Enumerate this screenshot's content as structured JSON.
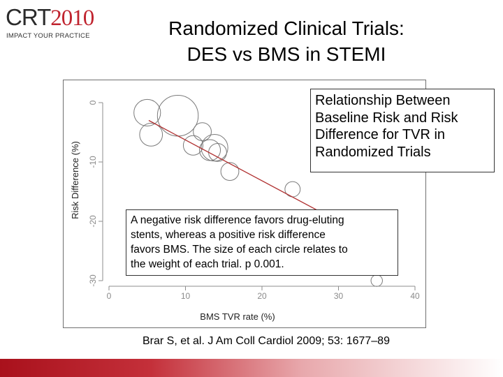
{
  "logo": {
    "text_main": "CRT",
    "text_year": "2010",
    "tagline": "IMPACT YOUR PRACTICE"
  },
  "title": {
    "line1": "Randomized Clinical Trials:",
    "line2": "DES vs BMS in STEMI"
  },
  "callout_top": {
    "lines": [
      "Relationship Between",
      "Baseline Risk and Risk",
      "Difference for TVR in",
      "Randomized Trials"
    ]
  },
  "callout_mid": {
    "lines": [
      "A negative risk difference favors drug-eluting",
      "stents, whereas a positive risk difference",
      "favors BMS. The size of each circle relates to",
      "the weight of each trial. p  0.001."
    ]
  },
  "citation": "Brar S, et al. J Am Coll Cardiol 2009; 53: 1677–89",
  "colors": {
    "accent": "#c0242f",
    "trend_line": "#b03030",
    "marker": "#7a7a7a"
  },
  "chart_data": {
    "type": "scatter",
    "title": "",
    "xlabel": "BMS TVR rate (%)",
    "ylabel": "Risk Difference (%)",
    "xlim": [
      0,
      40
    ],
    "ylim": [
      -30,
      0
    ],
    "x_ticks": [
      "0",
      "10",
      "20",
      "30",
      "40"
    ],
    "y_ticks": [
      "0",
      "-10",
      "-20",
      "-30"
    ],
    "y_tick_values": [
      0,
      -10,
      -20,
      -30
    ],
    "x_tick_values": [
      0,
      10,
      20,
      30,
      40
    ],
    "grid": false,
    "points": [
      {
        "x": 5.0,
        "y": -1.7,
        "weight": 2.2
      },
      {
        "x": 9.0,
        "y": -2.2,
        "weight": 6.0
      },
      {
        "x": 5.5,
        "y": -5.4,
        "weight": 1.5
      },
      {
        "x": 12.2,
        "y": -4.9,
        "weight": 0.8
      },
      {
        "x": 11.0,
        "y": -7.2,
        "weight": 1.0
      },
      {
        "x": 13.8,
        "y": -7.6,
        "weight": 2.2
      },
      {
        "x": 13.2,
        "y": -8.0,
        "weight": 1.2
      },
      {
        "x": 14.2,
        "y": -8.4,
        "weight": 0.8
      },
      {
        "x": 15.8,
        "y": -11.6,
        "weight": 0.8
      },
      {
        "x": 24.0,
        "y": -14.6,
        "weight": 0.5
      },
      {
        "x": 35.0,
        "y": -30.0,
        "weight": 0.2
      }
    ],
    "trend_line": {
      "x": [
        5.2,
        36.5
      ],
      "y": [
        -3.0,
        -24.5
      ]
    }
  }
}
